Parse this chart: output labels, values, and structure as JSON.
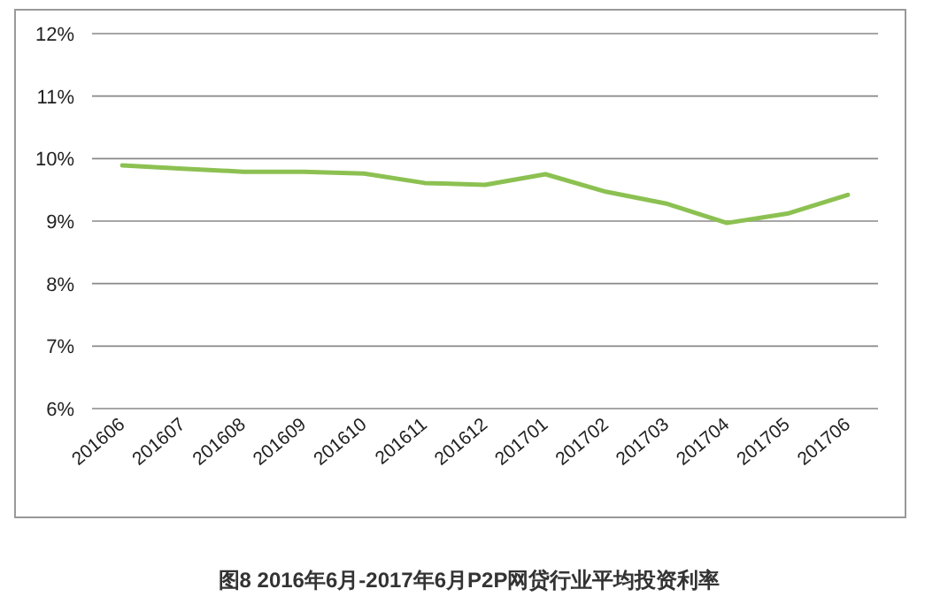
{
  "chart_data": {
    "type": "line",
    "title": "图8  2016年6月-2017年6月P2P网贷行业平均投资利率",
    "categories": [
      "201606",
      "201607",
      "201608",
      "201609",
      "201610",
      "201611",
      "201612",
      "201701",
      "201702",
      "201703",
      "201704",
      "201705",
      "201706"
    ],
    "series": [
      {
        "color": "#8cc152",
        "values": [
          9.89,
          9.84,
          9.79,
          9.79,
          9.76,
          9.61,
          9.58,
          9.75,
          9.47,
          9.28,
          8.97,
          9.12,
          9.42
        ]
      }
    ],
    "ylim": [
      6,
      12
    ],
    "yticks": [
      {
        "value": 6,
        "label": "6%"
      },
      {
        "value": 7,
        "label": "7%"
      },
      {
        "value": 8,
        "label": "8%"
      },
      {
        "value": 9,
        "label": "9%"
      },
      {
        "value": 10,
        "label": "10%"
      },
      {
        "value": 11,
        "label": "11%"
      },
      {
        "value": 12,
        "label": "12%"
      }
    ],
    "grid": "y",
    "marker": "none",
    "line_style": "solid"
  }
}
